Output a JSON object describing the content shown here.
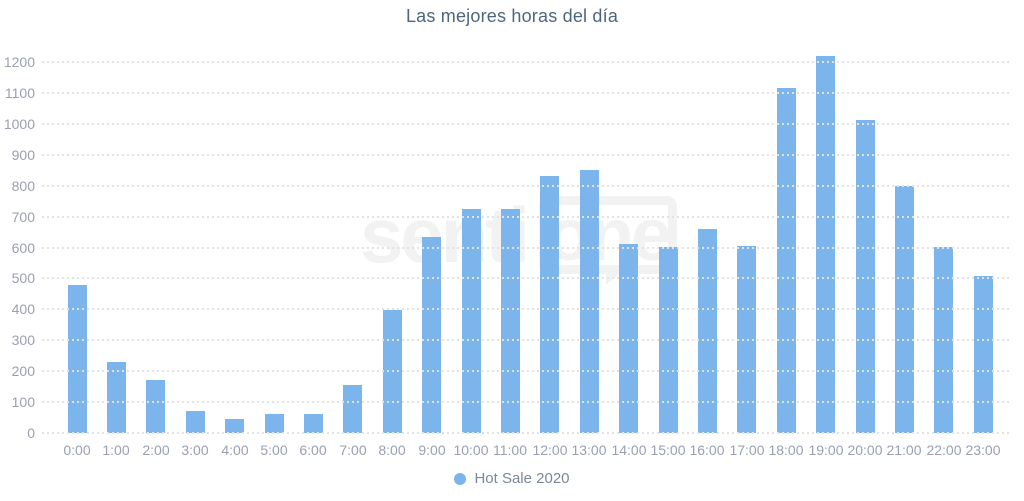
{
  "chart": {
    "title": "Las mejores horas del día"
  },
  "watermark": {
    "text_left": "senti",
    "text_bubble": "one"
  },
  "colors": {
    "bar": "#7cb5ec",
    "title": "#4d6680",
    "axis_labels": "#9a9fb2",
    "legend_text": "#7d8798",
    "gridline": "#e2e2e2",
    "watermark": "#f2f2f2",
    "background": "#ffffff"
  },
  "chart_data": {
    "type": "bar",
    "title": "Las mejores horas del día",
    "categories": [
      "0:00",
      "1:00",
      "2:00",
      "3:00",
      "4:00",
      "5:00",
      "6:00",
      "7:00",
      "8:00",
      "9:00",
      "10:00",
      "11:00",
      "12:00",
      "13:00",
      "14:00",
      "15:00",
      "16:00",
      "17:00",
      "18:00",
      "19:00",
      "20:00",
      "21:00",
      "22:00",
      "23:00"
    ],
    "series": [
      {
        "name": "Hot Sale 2020",
        "values": [
          480,
          230,
          172,
          72,
          45,
          62,
          62,
          156,
          399,
          633,
          724,
          724,
          831,
          851,
          612,
          600,
          659,
          606,
          1117,
          1220,
          1014,
          800,
          603,
          507
        ]
      }
    ],
    "xlabel": "",
    "ylabel": "",
    "ylim": [
      0,
      1200
    ],
    "ytick_step": 100,
    "yticks": [
      0,
      100,
      200,
      300,
      400,
      500,
      600,
      700,
      800,
      900,
      1000,
      1100,
      1200
    ],
    "grid": "dotted-horizontal",
    "legend_position": "bottom-center"
  }
}
